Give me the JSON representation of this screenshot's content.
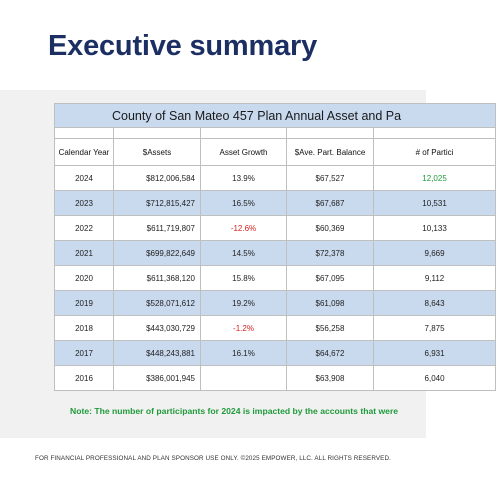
{
  "page": {
    "title": "Executive summary",
    "note": "Note:  The number of participants for 2024 is impacted by the accounts that were",
    "footer": "FOR FINANCIAL PROFESSIONAL AND PLAN SPONSOR USE ONLY. ©2025 EMPOWER, LLC. ALL RIGHTS RESERVED."
  },
  "table": {
    "caption": "County of San Mateo 457 Plan Annual Asset and Pa",
    "headers": [
      "Calendar Year",
      "$Assets",
      "Asset Growth",
      "$Ave. Part. Balance",
      "# of Partici"
    ],
    "rows": [
      [
        "2024",
        "$812,006,584",
        "13.9%",
        "$67,527",
        "12,025"
      ],
      [
        "2023",
        "$712,815,427",
        "16.5%",
        "$67,687",
        "10,531"
      ],
      [
        "2022",
        "$611,719,807",
        "-12.6%",
        "$60,369",
        "10,133"
      ],
      [
        "2021",
        "$699,822,649",
        "14.5%",
        "$72,378",
        "9,669"
      ],
      [
        "2020",
        "$611,368,120",
        "15.8%",
        "$67,095",
        "9,112"
      ],
      [
        "2019",
        "$528,071,612",
        "19.2%",
        "$61,098",
        "8,643"
      ],
      [
        "2018",
        "$443,030,729",
        "-1.2%",
        "$56,258",
        "7,875"
      ],
      [
        "2017",
        "$448,243,881",
        "16.1%",
        "$64,672",
        "6,931"
      ],
      [
        "2016",
        "$386,001,945",
        "",
        "$63,908",
        "6,040"
      ]
    ],
    "colors": {
      "band": "#c9d9ee",
      "negative": "#d42020",
      "highlight": "#1f9a3a"
    }
  }
}
